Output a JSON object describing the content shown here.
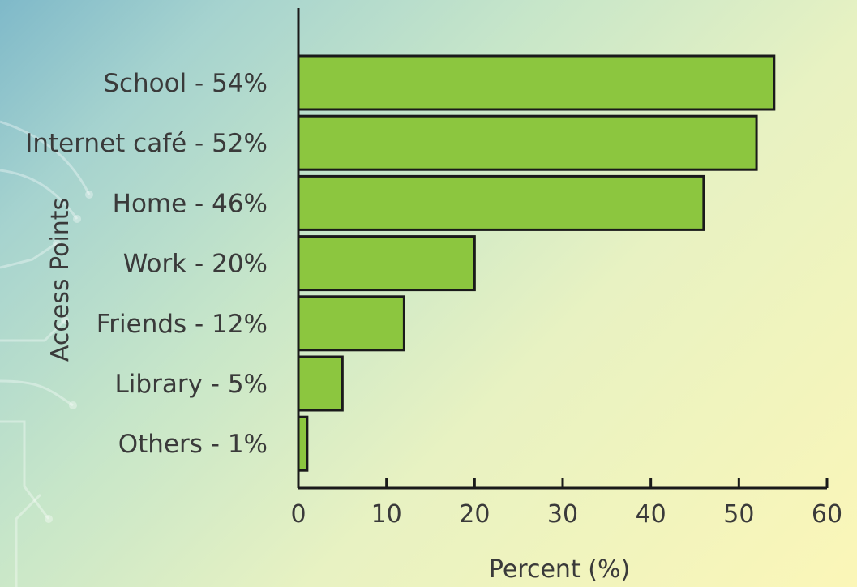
{
  "chart_data": {
    "type": "bar",
    "orientation": "horizontal",
    "categories": [
      "School - 54%",
      "Internet café - 52%",
      "Home - 46%",
      "Work - 20%",
      "Friends - 12%",
      "Library - 5%",
      "Others - 1%"
    ],
    "values": [
      54,
      52,
      46,
      20,
      12,
      5,
      1
    ],
    "xlabel": "Percent (%)",
    "ylabel": "Access Points",
    "xlim": [
      0,
      60
    ],
    "xticks": [
      "0",
      "10",
      "20",
      "30",
      "40",
      "50",
      "60"
    ],
    "grid": false,
    "legend": "none",
    "bar_color": "#8cc63f",
    "bar_edge_color": "#1a1a1a"
  }
}
